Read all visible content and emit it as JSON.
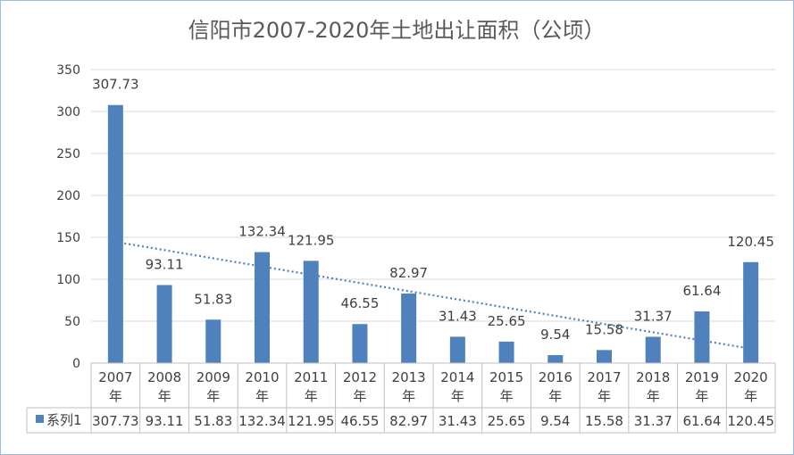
{
  "chart_data": {
    "type": "bar",
    "title": "信阳市2007-2020年土地出让面积（公顷）",
    "categories": [
      [
        "2007",
        "年"
      ],
      [
        "2008",
        "年"
      ],
      [
        "2009",
        "年"
      ],
      [
        "2010",
        "年"
      ],
      [
        "2011",
        "年"
      ],
      [
        "2012",
        "年"
      ],
      [
        "2013",
        "年"
      ],
      [
        "2014",
        "年"
      ],
      [
        "2015",
        "年"
      ],
      [
        "2016",
        "年"
      ],
      [
        "2017",
        "年"
      ],
      [
        "2018",
        "年"
      ],
      [
        "2019",
        "年"
      ],
      [
        "2020",
        "年"
      ]
    ],
    "series": [
      {
        "name": "系列1",
        "values": [
          307.73,
          93.11,
          51.83,
          132.34,
          121.95,
          46.55,
          82.97,
          31.43,
          25.65,
          9.54,
          15.58,
          31.37,
          61.64,
          120.45
        ],
        "labels": [
          "307.73",
          "93.11",
          "51.83",
          "132.34",
          "121.95",
          "46.55",
          "82.97",
          "31.43",
          "25.65",
          "9.54",
          "15.58",
          "31.37",
          "61.64",
          "120.45"
        ]
      }
    ],
    "ylim": [
      0,
      350
    ],
    "yticks": [
      "0",
      "50",
      "100",
      "150",
      "200",
      "250",
      "300",
      "350"
    ],
    "grid": true,
    "trendline": "linear",
    "data_table": true,
    "colors": {
      "bar": "#4f81bd",
      "trend": "#4f81bd",
      "grid": "#d9d9d9"
    }
  }
}
